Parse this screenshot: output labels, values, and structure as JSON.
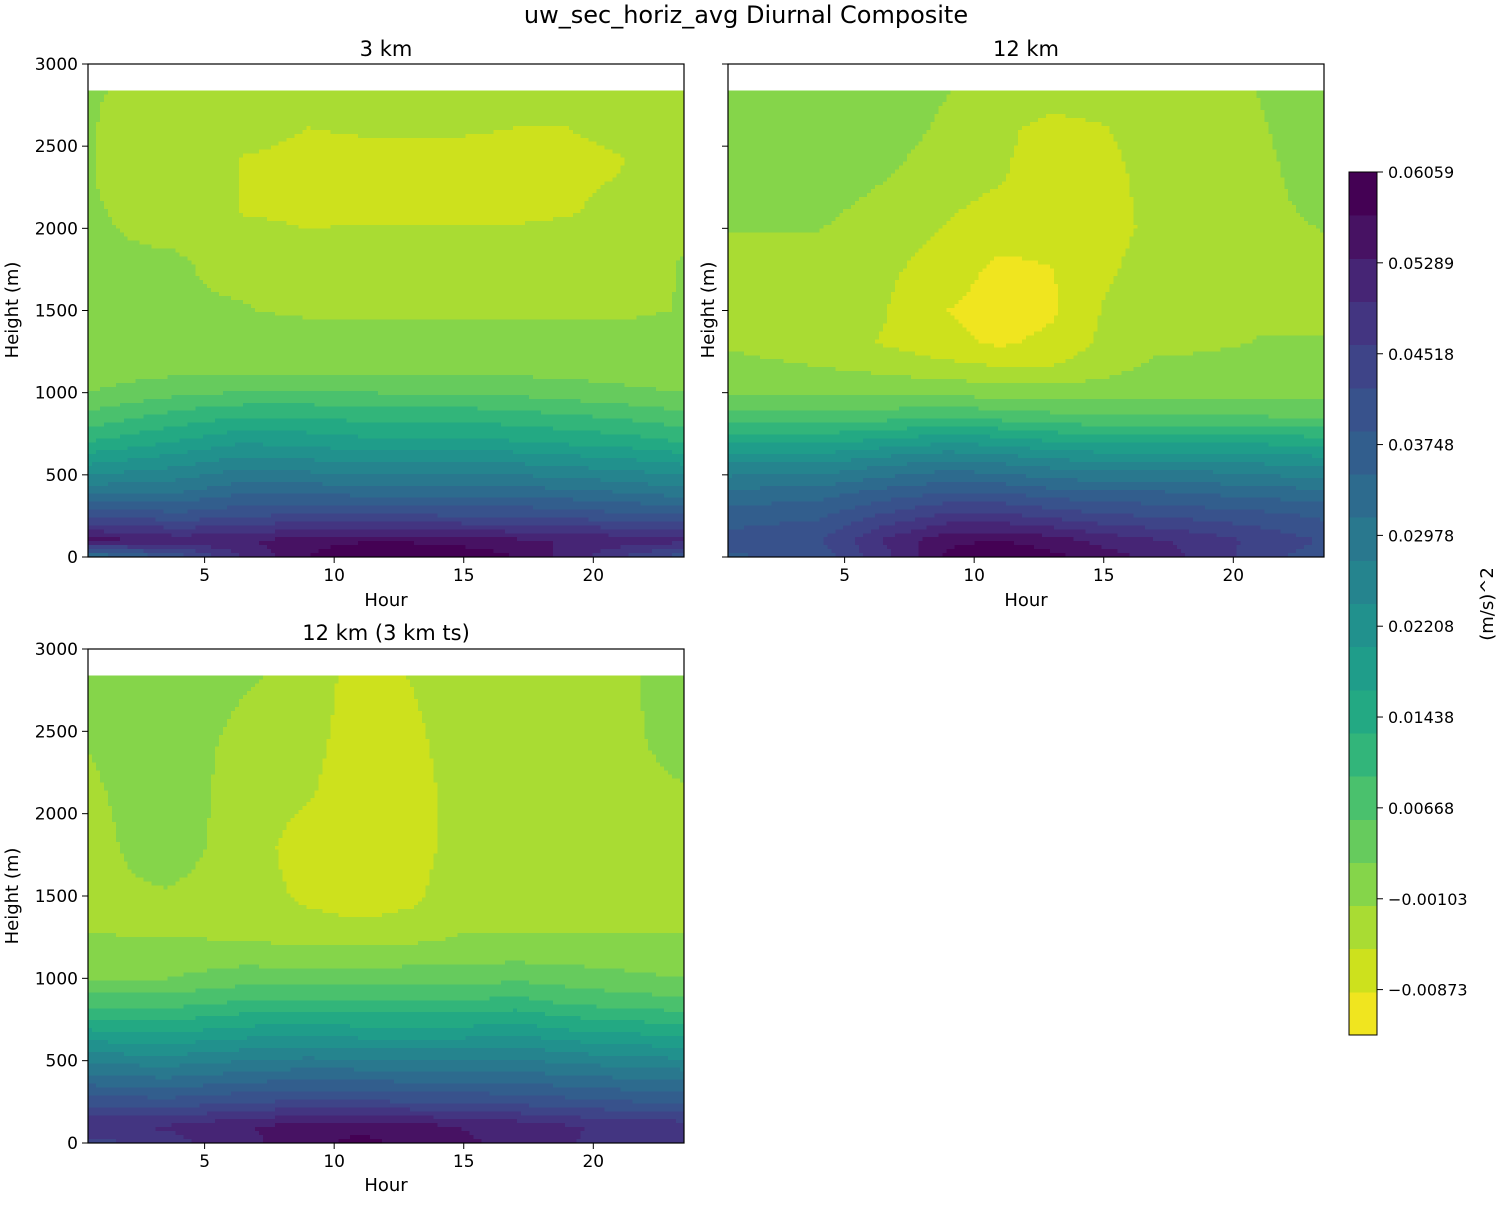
{
  "figure": {
    "title": "uw_sec_horiz_avg Diurnal Composite"
  },
  "colorbar": {
    "label": "(m/s)^2",
    "tick_labels": [
      "0.06059",
      "0.05289",
      "0.04518",
      "0.03748",
      "0.02978",
      "0.02208",
      "0.01438",
      "0.00668",
      "−0.00103",
      "−0.00873"
    ],
    "tick_values": [
      0.06059,
      0.05289,
      0.04518,
      0.03748,
      0.02978,
      0.02208,
      0.01438,
      0.00668,
      -0.00103,
      -0.00873
    ],
    "min": -0.01258,
    "max": 0.06059,
    "levels": 19,
    "colors": [
      "#f0e51f",
      "#cde11d",
      "#a9dc33",
      "#85d54a",
      "#66cb5d",
      "#4ac16d",
      "#32b57a",
      "#23a983",
      "#1f9d8a",
      "#21918d",
      "#25848e",
      "#29788e",
      "#2d6b8e",
      "#325e8d",
      "#38528c",
      "#3e4488",
      "#433581",
      "#462575",
      "#471263",
      "#440154"
    ]
  },
  "chart_data": [
    {
      "type": "contourf",
      "title": "3 km",
      "xlabel": "Hour",
      "ylabel": "Height (m)",
      "xlim": [
        0.5,
        23.5
      ],
      "ylim": [
        0,
        3000
      ],
      "data_top": 2840,
      "x_ticks": [
        5,
        10,
        15,
        20
      ],
      "y_ticks": [
        0,
        500,
        1000,
        1500,
        2000,
        2500,
        3000
      ],
      "show_ylabels": true,
      "hours": [
        0.5,
        4,
        6.5,
        9,
        11,
        13,
        15,
        17,
        19,
        21,
        23.5
      ],
      "heights": [
        0,
        100,
        250,
        400,
        550,
        700,
        850,
        1000,
        1150,
        1500,
        1800,
        2100,
        2400,
        2840
      ],
      "values": [
        [
          0.03,
          0.055,
          0.042,
          0.03,
          0.021,
          0.013,
          0.007,
          0.002,
          0.0,
          -0.0015,
          -0.0015,
          -0.0015,
          -0.0015,
          -0.0015
        ],
        [
          0.04,
          0.052,
          0.04,
          0.031,
          0.024,
          0.017,
          0.011,
          0.005,
          0.0007,
          -0.0015,
          -0.0015,
          -0.002,
          -0.003,
          -0.002
        ],
        [
          0.05,
          0.053,
          0.042,
          0.034,
          0.027,
          0.02,
          0.013,
          0.006,
          0.0008,
          -0.0015,
          -0.002,
          -0.0055,
          -0.0055,
          -0.003
        ],
        [
          0.057,
          0.055,
          0.043,
          0.034,
          0.026,
          0.019,
          0.013,
          0.006,
          0.0008,
          -0.002,
          -0.004,
          -0.006,
          -0.006,
          -0.0045
        ],
        [
          0.062,
          0.056,
          0.043,
          0.033,
          0.025,
          0.018,
          0.012,
          0.006,
          0.0007,
          -0.002,
          -0.003,
          -0.006,
          -0.006,
          -0.004
        ],
        [
          0.062,
          0.056,
          0.043,
          0.033,
          0.025,
          0.018,
          0.012,
          0.005,
          0.0007,
          -0.002,
          -0.0035,
          -0.006,
          -0.006,
          -0.004
        ],
        [
          0.06,
          0.055,
          0.042,
          0.033,
          0.025,
          0.018,
          0.012,
          0.005,
          0.0007,
          -0.002,
          -0.0035,
          -0.006,
          -0.006,
          -0.004
        ],
        [
          0.057,
          0.054,
          0.042,
          0.033,
          0.025,
          0.017,
          0.011,
          0.005,
          0.0006,
          -0.002,
          -0.003,
          -0.006,
          -0.006,
          -0.0045
        ],
        [
          0.052,
          0.053,
          0.041,
          0.032,
          0.024,
          0.016,
          0.01,
          0.004,
          0.0004,
          -0.002,
          -0.003,
          -0.0055,
          -0.006,
          -0.0045
        ],
        [
          0.046,
          0.052,
          0.04,
          0.031,
          0.023,
          0.015,
          0.009,
          0.003,
          0.0002,
          -0.002,
          -0.0025,
          -0.0045,
          -0.0055,
          -0.0035
        ],
        [
          0.04,
          0.051,
          0.039,
          0.029,
          0.021,
          0.013,
          0.007,
          0.002,
          0.0,
          -0.0015,
          -0.0015,
          -0.002,
          -0.0025,
          -0.002
        ]
      ]
    },
    {
      "type": "contourf",
      "title": "12 km",
      "xlabel": "Hour",
      "ylabel": "Height (m)",
      "xlim": [
        0.5,
        23.5
      ],
      "ylim": [
        0,
        3000
      ],
      "data_top": 2840,
      "x_ticks": [
        5,
        10,
        15,
        20
      ],
      "y_ticks": [
        0,
        500,
        1000,
        1500,
        2000,
        2500,
        3000
      ],
      "show_ylabels": false,
      "hours": [
        0.5,
        4,
        6.5,
        9,
        11,
        13,
        15,
        17,
        19,
        21,
        23.5
      ],
      "heights": [
        0,
        100,
        250,
        400,
        550,
        700,
        850,
        1000,
        1150,
        1300,
        1500,
        1750,
        2000,
        2300,
        2600,
        2840
      ],
      "values": [
        [
          0.038,
          0.04,
          0.037,
          0.032,
          0.025,
          0.016,
          0.007,
          0.002,
          -0.0005,
          -0.002,
          -0.0025,
          -0.003,
          -0.0015,
          0.0,
          0.0005,
          0.001
        ],
        [
          0.04,
          0.042,
          0.038,
          0.033,
          0.025,
          0.016,
          0.007,
          0.0015,
          -0.0015,
          -0.0035,
          -0.004,
          -0.003,
          -0.0015,
          0.0005,
          0.001,
          0.001
        ],
        [
          0.048,
          0.05,
          0.043,
          0.036,
          0.028,
          0.018,
          0.008,
          0.001,
          -0.0025,
          -0.0055,
          -0.005,
          -0.0045,
          -0.0035,
          -0.0015,
          0.0005,
          0.001
        ],
        [
          0.058,
          0.056,
          0.047,
          0.038,
          0.03,
          0.02,
          0.009,
          0.001,
          -0.004,
          -0.008,
          -0.009,
          -0.007,
          -0.0055,
          -0.004,
          -0.0025,
          -0.0015
        ],
        [
          0.06,
          0.057,
          0.047,
          0.038,
          0.029,
          0.019,
          0.008,
          0.0005,
          -0.005,
          -0.0095,
          -0.0105,
          -0.01,
          -0.007,
          -0.005,
          -0.0045,
          -0.003
        ],
        [
          0.058,
          0.055,
          0.045,
          0.036,
          0.027,
          0.017,
          0.007,
          0.0,
          -0.005,
          -0.008,
          -0.0095,
          -0.009,
          -0.0075,
          -0.007,
          -0.0065,
          -0.0035
        ],
        [
          0.055,
          0.052,
          0.043,
          0.035,
          0.026,
          0.016,
          0.006,
          0.0005,
          -0.003,
          -0.0045,
          -0.005,
          -0.006,
          -0.0065,
          -0.0065,
          -0.0055,
          -0.0035
        ],
        [
          0.052,
          0.05,
          0.042,
          0.035,
          0.026,
          0.016,
          0.006,
          0.001,
          -0.0008,
          -0.0025,
          -0.003,
          -0.0035,
          -0.0045,
          -0.004,
          -0.0035,
          -0.003
        ],
        [
          0.048,
          0.048,
          0.041,
          0.034,
          0.026,
          0.016,
          0.006,
          0.001,
          -0.0008,
          -0.002,
          -0.0025,
          -0.0025,
          -0.003,
          -0.003,
          -0.0025,
          -0.0025
        ],
        [
          0.044,
          0.045,
          0.04,
          0.033,
          0.025,
          0.016,
          0.006,
          0.001,
          -0.0005,
          -0.0015,
          -0.002,
          -0.0025,
          -0.0025,
          -0.0025,
          -0.002,
          -0.0015
        ],
        [
          0.04,
          0.042,
          0.038,
          0.032,
          0.024,
          0.015,
          0.005,
          0.001,
          -0.0005,
          -0.0015,
          -0.002,
          -0.002,
          -0.0015,
          0.0,
          0.0005,
          0.001
        ]
      ]
    },
    {
      "type": "contourf",
      "title": "12 km (3 km ts)",
      "xlabel": "Hour",
      "ylabel": "Height (m)",
      "xlim": [
        0.5,
        23.5
      ],
      "ylim": [
        0,
        3000
      ],
      "data_top": 2840,
      "x_ticks": [
        5,
        10,
        15,
        20
      ],
      "y_ticks": [
        0,
        500,
        1000,
        1500,
        2000,
        2500,
        3000
      ],
      "show_ylabels": true,
      "hours": [
        0.5,
        3.5,
        6.5,
        9,
        11,
        13,
        15,
        17,
        19,
        21,
        23.5
      ],
      "heights": [
        0,
        100,
        250,
        400,
        550,
        700,
        850,
        1000,
        1150,
        1300,
        1500,
        1800,
        2100,
        2400,
        2840
      ],
      "values": [
        [
          0.044,
          0.05,
          0.041,
          0.032,
          0.024,
          0.016,
          0.008,
          0.002,
          -0.0003,
          -0.002,
          -0.0025,
          -0.003,
          -0.0025,
          -0.0015,
          -0.0008
        ],
        [
          0.048,
          0.05,
          0.04,
          0.031,
          0.023,
          0.015,
          0.008,
          0.002,
          -0.0005,
          -0.002,
          -0.002,
          0.0005,
          0.001,
          0.001,
          0.001
        ],
        [
          0.052,
          0.053,
          0.042,
          0.033,
          0.025,
          0.017,
          0.01,
          0.004,
          0.0,
          -0.003,
          -0.0035,
          -0.0035,
          -0.0035,
          -0.003,
          -0.001
        ],
        [
          0.056,
          0.055,
          0.043,
          0.034,
          0.026,
          0.018,
          0.01,
          0.004,
          -0.0005,
          -0.004,
          -0.006,
          -0.007,
          -0.005,
          -0.004,
          -0.003
        ],
        [
          0.058,
          0.056,
          0.043,
          0.034,
          0.025,
          0.017,
          0.01,
          0.004,
          -0.0005,
          -0.0045,
          -0.007,
          -0.0075,
          -0.0075,
          -0.0075,
          -0.007
        ],
        [
          0.056,
          0.055,
          0.042,
          0.033,
          0.025,
          0.017,
          0.01,
          0.004,
          0.0,
          -0.004,
          -0.006,
          -0.007,
          -0.007,
          -0.0065,
          -0.005
        ],
        [
          0.054,
          0.053,
          0.042,
          0.033,
          0.025,
          0.017,
          0.01,
          0.004,
          0.0002,
          -0.002,
          -0.003,
          -0.0035,
          -0.0035,
          -0.003,
          -0.0025
        ],
        [
          0.052,
          0.052,
          0.041,
          0.033,
          0.026,
          0.018,
          0.011,
          0.005,
          0.0005,
          -0.002,
          -0.0025,
          -0.003,
          -0.003,
          -0.0025,
          -0.0025
        ],
        [
          0.05,
          0.05,
          0.04,
          0.032,
          0.024,
          0.016,
          0.009,
          0.004,
          0.0003,
          -0.002,
          -0.0025,
          -0.003,
          -0.003,
          -0.0025,
          -0.0025
        ],
        [
          0.048,
          0.049,
          0.039,
          0.031,
          0.023,
          0.015,
          0.008,
          0.003,
          0.0002,
          -0.002,
          -0.0025,
          -0.003,
          -0.003,
          -0.0025,
          -0.0025
        ],
        [
          0.046,
          0.048,
          0.038,
          0.03,
          0.022,
          0.014,
          0.007,
          0.002,
          0.0,
          -0.002,
          -0.0025,
          -0.0025,
          -0.002,
          -0.0005,
          0.0005
        ]
      ]
    }
  ]
}
